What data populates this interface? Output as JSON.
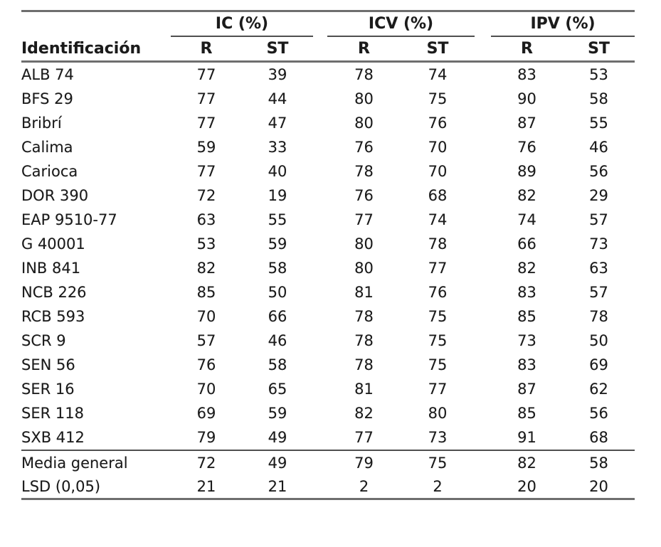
{
  "table": {
    "id_header": "Identificación",
    "groups": [
      {
        "label": "IC (%)"
      },
      {
        "label": "ICV (%)"
      },
      {
        "label": "IPV (%)"
      }
    ],
    "subheaders": [
      "R",
      "ST"
    ],
    "rows": [
      {
        "id": "ALB 74",
        "values": [
          77,
          39,
          78,
          74,
          83,
          53
        ]
      },
      {
        "id": "BFS 29",
        "values": [
          77,
          44,
          80,
          75,
          90,
          58
        ]
      },
      {
        "id": "Bribrí",
        "values": [
          77,
          47,
          80,
          76,
          87,
          55
        ]
      },
      {
        "id": "Calima",
        "values": [
          59,
          33,
          76,
          70,
          76,
          46
        ]
      },
      {
        "id": "Carioca",
        "values": [
          77,
          40,
          78,
          70,
          89,
          56
        ]
      },
      {
        "id": "DOR 390",
        "values": [
          72,
          19,
          76,
          68,
          82,
          29
        ]
      },
      {
        "id": "EAP 9510-77",
        "values": [
          63,
          55,
          77,
          74,
          74,
          57
        ]
      },
      {
        "id": "G 40001",
        "values": [
          53,
          59,
          80,
          78,
          66,
          73
        ]
      },
      {
        "id": "INB 841",
        "values": [
          82,
          58,
          80,
          77,
          82,
          63
        ]
      },
      {
        "id": "NCB 226",
        "values": [
          85,
          50,
          81,
          76,
          83,
          57
        ]
      },
      {
        "id": "RCB 593",
        "values": [
          70,
          66,
          78,
          75,
          85,
          78
        ]
      },
      {
        "id": "SCR 9",
        "values": [
          57,
          46,
          78,
          75,
          73,
          50
        ]
      },
      {
        "id": "SEN 56",
        "values": [
          76,
          58,
          78,
          75,
          83,
          69
        ]
      },
      {
        "id": "SER 16",
        "values": [
          70,
          65,
          81,
          77,
          87,
          62
        ]
      },
      {
        "id": "SER 118",
        "values": [
          69,
          59,
          82,
          80,
          85,
          56
        ]
      },
      {
        "id": "SXB 412",
        "values": [
          79,
          49,
          77,
          73,
          91,
          68
        ]
      }
    ],
    "summary_rows": [
      {
        "id": "Media general",
        "values": [
          72,
          49,
          79,
          75,
          82,
          58
        ]
      },
      {
        "id": "LSD (0,05)",
        "values": [
          21,
          21,
          2,
          2,
          20,
          20
        ]
      }
    ],
    "colors": {
      "text": "#1b1b1b",
      "rule_dark": "#4f4f4f",
      "rule_light": "#6e6e6e",
      "background": "#ffffff"
    }
  },
  "chart_data": {
    "type": "table",
    "columns": [
      "Identificación",
      "IC (%) R",
      "IC (%) ST",
      "ICV (%) R",
      "ICV (%) ST",
      "IPV (%) R",
      "IPV (%) ST"
    ],
    "rows": [
      [
        "ALB 74",
        77,
        39,
        78,
        74,
        83,
        53
      ],
      [
        "BFS 29",
        77,
        44,
        80,
        75,
        90,
        58
      ],
      [
        "Bribrí",
        77,
        47,
        80,
        76,
        87,
        55
      ],
      [
        "Calima",
        59,
        33,
        76,
        70,
        76,
        46
      ],
      [
        "Carioca",
        77,
        40,
        78,
        70,
        89,
        56
      ],
      [
        "DOR 390",
        72,
        19,
        76,
        68,
        82,
        29
      ],
      [
        "EAP 9510-77",
        63,
        55,
        77,
        74,
        74,
        57
      ],
      [
        "G 40001",
        53,
        59,
        80,
        78,
        66,
        73
      ],
      [
        "INB 841",
        82,
        58,
        80,
        77,
        82,
        63
      ],
      [
        "NCB 226",
        85,
        50,
        81,
        76,
        83,
        57
      ],
      [
        "RCB 593",
        70,
        66,
        78,
        75,
        85,
        78
      ],
      [
        "SCR 9",
        57,
        46,
        78,
        75,
        73,
        50
      ],
      [
        "SEN 56",
        76,
        58,
        78,
        75,
        83,
        69
      ],
      [
        "SER 16",
        70,
        65,
        81,
        77,
        87,
        62
      ],
      [
        "SER 118",
        69,
        59,
        82,
        80,
        85,
        56
      ],
      [
        "SXB 412",
        79,
        49,
        77,
        73,
        91,
        68
      ],
      [
        "Media general",
        72,
        49,
        79,
        75,
        82,
        58
      ],
      [
        "LSD (0,05)",
        21,
        21,
        2,
        2,
        20,
        20
      ]
    ]
  }
}
